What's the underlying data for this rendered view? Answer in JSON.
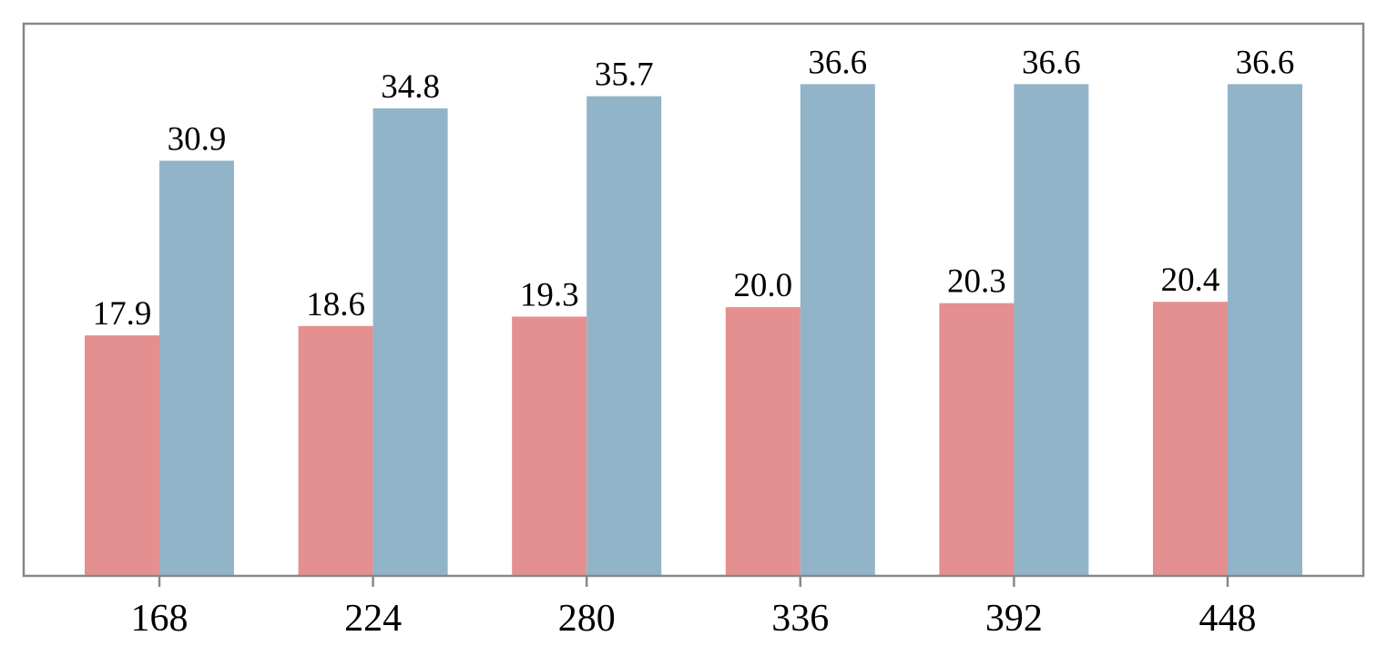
{
  "chart_data": {
    "type": "bar",
    "categories": [
      "168",
      "224",
      "280",
      "336",
      "392",
      "448"
    ],
    "series": [
      {
        "color": "#e48f90",
        "values": [
          17.9,
          18.6,
          19.3,
          20.0,
          20.3,
          20.4
        ],
        "value_labels": [
          "17.9",
          "18.6",
          "19.3",
          "20.0",
          "20.3",
          "20.4"
        ]
      },
      {
        "color": "#92b4c8",
        "values": [
          30.9,
          34.8,
          35.7,
          36.6,
          36.6,
          36.6
        ],
        "value_labels": [
          "30.9",
          "34.8",
          "35.7",
          "36.6",
          "36.6",
          "36.6"
        ]
      }
    ],
    "ylim": [
      0,
      41.1
    ]
  }
}
